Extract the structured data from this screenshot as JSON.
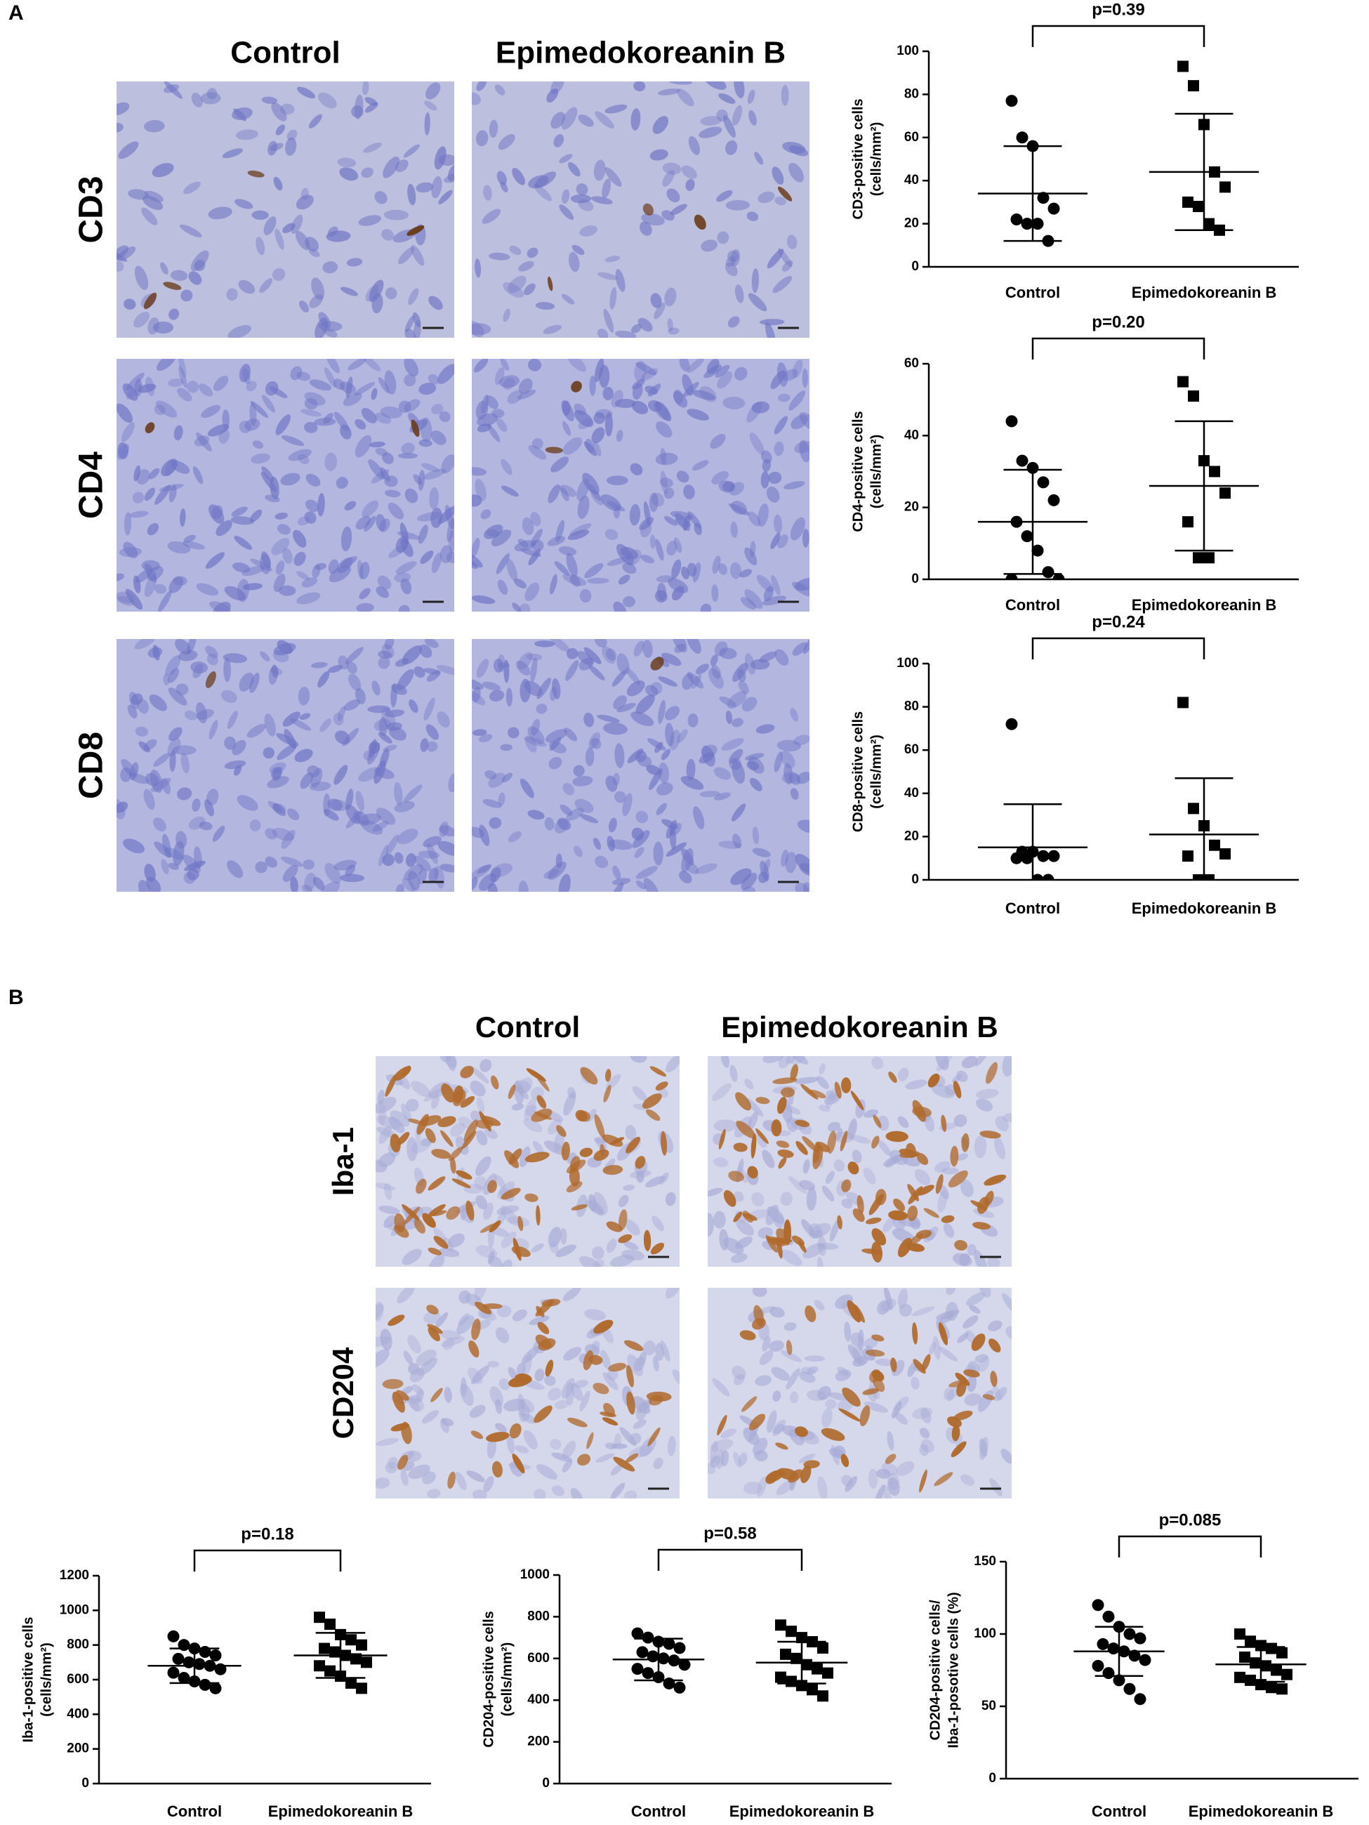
{
  "panels": [
    {
      "label": "A",
      "columns": [
        "Control",
        "Epimedokoreanin B"
      ],
      "rows": [
        "CD3",
        "CD4",
        "CD8"
      ]
    },
    {
      "label": "B",
      "columns": [
        "Control",
        "Epimedokoreanin B"
      ],
      "rows": [
        "Iba-1",
        "CD204"
      ]
    }
  ],
  "chart_data": [
    {
      "type": "dot",
      "ylabel": [
        "CD3-positive cells",
        "(cells/mm²)"
      ],
      "annotation": "p=0.39",
      "ylim": [
        0,
        100
      ],
      "yticks": [
        0,
        20,
        40,
        60,
        80,
        100
      ],
      "color": "#000000",
      "groups": [
        {
          "name": "Control",
          "marker": "circle",
          "values": [
            77,
            60,
            56,
            32,
            27,
            22,
            20,
            20,
            12
          ],
          "mean": 34,
          "sd": 22
        },
        {
          "name": "Epimedokoreanin B",
          "marker": "square",
          "values": [
            93,
            84,
            66,
            44,
            37,
            30,
            28,
            20,
            17
          ],
          "mean": 44,
          "sd": 27
        }
      ]
    },
    {
      "type": "dot",
      "ylabel": [
        "CD4-positive cells",
        "(cells/mm²)"
      ],
      "annotation": "p=0.20",
      "ylim": [
        0,
        60
      ],
      "yticks": [
        0,
        20,
        40,
        60
      ],
      "color": "#000000",
      "groups": [
        {
          "name": "Control",
          "marker": "circle",
          "values": [
            44,
            33,
            31,
            27,
            22,
            16,
            12,
            8,
            2,
            0,
            0
          ],
          "mean": 16,
          "sd": 14.5
        },
        {
          "name": "Epimedokoreanin B",
          "marker": "square",
          "values": [
            55,
            51,
            33,
            30,
            24,
            16,
            6,
            6
          ],
          "mean": 26,
          "sd": 18
        }
      ]
    },
    {
      "type": "dot",
      "ylabel": [
        "CD8-positive cells",
        "(cells/mm²)"
      ],
      "annotation": "p=0.24",
      "ylim": [
        0,
        100
      ],
      "yticks": [
        0,
        20,
        40,
        60,
        80,
        100
      ],
      "color": "#000000",
      "groups": [
        {
          "name": "Control",
          "marker": "circle",
          "values": [
            72,
            13,
            13,
            11,
            11,
            10,
            10,
            0,
            0
          ],
          "mean": 15,
          "sd": 20
        },
        {
          "name": "Epimedokoreanin B",
          "marker": "square",
          "values": [
            82,
            33,
            25,
            16,
            12,
            11,
            0,
            0
          ],
          "mean": 21,
          "sd": 26
        }
      ]
    },
    {
      "type": "dot",
      "ylabel": [
        "Iba-1-positive cells",
        "(cells/mm²)"
      ],
      "annotation": "p=0.18",
      "ylim": [
        0,
        1200
      ],
      "yticks": [
        0,
        200,
        400,
        600,
        800,
        1000,
        1200
      ],
      "color": "#000000",
      "groups": [
        {
          "name": "Control",
          "marker": "circle",
          "values": [
            850,
            800,
            780,
            760,
            740,
            720,
            700,
            690,
            680,
            660,
            640,
            610,
            590,
            570,
            550
          ],
          "mean": 680,
          "sd": 100
        },
        {
          "name": "Epimedokoreanin B",
          "marker": "square",
          "values": [
            960,
            920,
            860,
            830,
            800,
            780,
            760,
            740,
            720,
            700,
            680,
            650,
            620,
            580,
            550
          ],
          "mean": 740,
          "sd": 130
        }
      ]
    },
    {
      "type": "dot",
      "ylabel": [
        "CD204-positive cells",
        "(cells/mm²)"
      ],
      "annotation": "p=0.58",
      "ylim": [
        0,
        1000
      ],
      "yticks": [
        0,
        200,
        400,
        600,
        800,
        1000
      ],
      "color": "#000000",
      "groups": [
        {
          "name": "Control",
          "marker": "circle",
          "values": [
            720,
            700,
            680,
            670,
            650,
            630,
            610,
            600,
            590,
            570,
            550,
            530,
            510,
            480,
            460
          ],
          "mean": 595,
          "sd": 100
        },
        {
          "name": "Epimedokoreanin B",
          "marker": "square",
          "values": [
            760,
            730,
            700,
            680,
            650,
            620,
            600,
            570,
            550,
            530,
            510,
            490,
            470,
            450,
            420
          ],
          "mean": 580,
          "sd": 100
        }
      ]
    },
    {
      "type": "dot",
      "ylabel": [
        "CD204-positive cells/",
        "Iba-1-posotive cells (%)"
      ],
      "annotation": "p=0.085",
      "ylim": [
        0,
        150
      ],
      "yticks": [
        0,
        50,
        100,
        150
      ],
      "color": "#000000",
      "groups": [
        {
          "name": "Control",
          "marker": "circle",
          "values": [
            120,
            112,
            105,
            100,
            97,
            93,
            90,
            88,
            85,
            82,
            78,
            73,
            68,
            62,
            55
          ],
          "mean": 88,
          "sd": 17
        },
        {
          "name": "Epimedokoreanin B",
          "marker": "square",
          "values": [
            100,
            95,
            92,
            90,
            87,
            84,
            80,
            78,
            75,
            72,
            70,
            68,
            65,
            63,
            62
          ],
          "mean": 79,
          "sd": 12
        }
      ]
    }
  ]
}
